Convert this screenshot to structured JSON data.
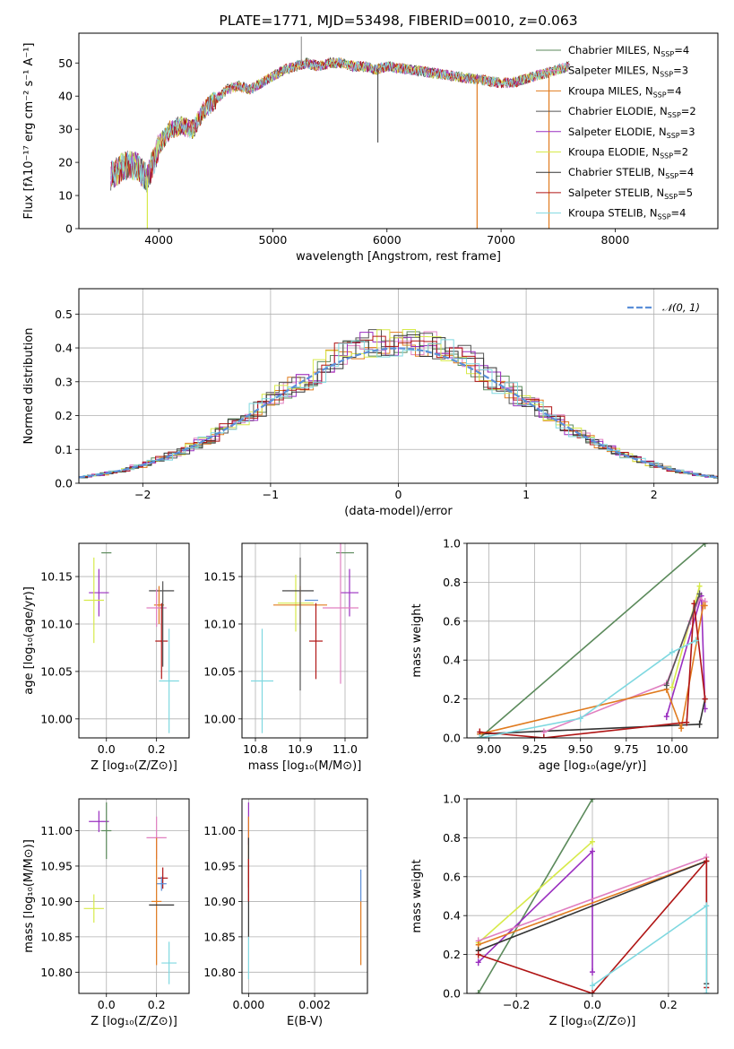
{
  "colors": {
    "Chabrier MILES": "#5b8a5b",
    "Salpeter MILES": "#e07fc0",
    "Kroupa MILES": "#e07b1f",
    "Chabrier ELODIE": "#555555",
    "Salpeter ELODIE": "#9a2fc0",
    "Kroupa ELODIE": "#d7ea4a",
    "Chabrier STELIB": "#333333",
    "Salpeter STELIB": "#b01515",
    "Kroupa STELIB": "#7fd8e0",
    "normal": "#5b8fd8",
    "extra_blue": "#5b8fd8"
  },
  "chart_data": [
    {
      "id": "spectrum",
      "type": "line",
      "title": "PLATE=1771, MJD=53498, FIBERID=0010, z=0.063",
      "xlabel": "wavelength [Angstrom, rest frame]",
      "ylabel": "Flux [fλ10⁻¹⁷ erg cm⁻² s⁻¹ A⁻¹]",
      "xlim": [
        3300,
        8900
      ],
      "ylim": [
        0,
        59
      ],
      "xticks": [
        4000,
        5000,
        6000,
        7000,
        8000
      ],
      "yticks": [
        0,
        10,
        20,
        30,
        40,
        50
      ],
      "grid": false,
      "legend_position": "top-right",
      "legend": [
        {
          "name": "Chabrier MILES",
          "nssp": "4"
        },
        {
          "name": "Salpeter MILES",
          "nssp": "3"
        },
        {
          "name": "Kroupa MILES",
          "nssp": "4"
        },
        {
          "name": "Chabrier ELODIE",
          "nssp": "2"
        },
        {
          "name": "Salpeter ELODIE",
          "nssp": "3"
        },
        {
          "name": "Kroupa ELODIE",
          "nssp": "2"
        },
        {
          "name": "Chabrier STELIB",
          "nssp": "4"
        },
        {
          "name": "Salpeter STELIB",
          "nssp": "5"
        },
        {
          "name": "Kroupa STELIB",
          "nssp": "4"
        }
      ],
      "x": [
        3580,
        3700,
        3800,
        3900,
        3950,
        4000,
        4100,
        4200,
        4300,
        4400,
        4500,
        4600,
        4700,
        4800,
        4900,
        5000,
        5100,
        5200,
        5300,
        5400,
        5500,
        5600,
        5700,
        5800,
        5900,
        6000,
        6200,
        6400,
        6600,
        6800,
        7000,
        7100,
        7200,
        7300,
        7400,
        7500,
        7600
      ],
      "y": [
        16,
        19,
        19,
        15,
        20,
        25,
        30,
        31,
        30,
        36,
        39,
        42,
        43,
        42,
        44,
        46,
        48,
        49,
        50,
        49,
        50,
        50,
        49,
        49,
        48,
        49,
        48,
        47,
        46,
        45,
        44,
        44,
        45,
        46,
        47,
        48,
        49
      ],
      "glitches": [
        {
          "x": 3900,
          "y": 0
        },
        {
          "x": 5250,
          "y": 58
        },
        {
          "x": 5920,
          "y": 26
        },
        {
          "x": 6790,
          "y": 0
        },
        {
          "x": 7420,
          "y": 0
        }
      ]
    },
    {
      "id": "residuals",
      "type": "bar",
      "xlabel": "(data-model)/error",
      "ylabel": "Normed distribution",
      "xlim": [
        -2.5,
        2.5
      ],
      "ylim": [
        0,
        0.575
      ],
      "xticks": [
        -2,
        -1,
        0,
        1,
        2
      ],
      "yticks": [
        0.0,
        0.1,
        0.2,
        0.3,
        0.4,
        0.5
      ],
      "grid": true,
      "legend_position": "top-right",
      "legend_label": "𝒩(0, 1)"
    },
    {
      "id": "age_vs_Z",
      "type": "scatter",
      "xlabel": "Z [log₁₀(Z/Z⊙)]",
      "ylabel": "age  [log₁₀(age/yr)]",
      "xlim": [
        -0.11,
        0.33
      ],
      "ylim": [
        9.98,
        10.185
      ],
      "xticks": [
        0.0,
        0.2
      ],
      "yticks": [
        10.0,
        10.05,
        10.1,
        10.15
      ],
      "grid": true,
      "points": [
        {
          "model": "Chabrier MILES",
          "x": 0.0,
          "y": 10.175,
          "ex": 0.02,
          "ey": 0.0
        },
        {
          "model": "Salpeter ELODIE",
          "x": -0.03,
          "y": 10.133,
          "ex": 0.04,
          "ey": 0.025
        },
        {
          "model": "Kroupa ELODIE",
          "x": -0.05,
          "y": 10.125,
          "ex": 0.04,
          "ey": 0.045
        },
        {
          "model": "Chabrier STELIB",
          "x": 0.22,
          "y": 10.135,
          "ex": 0.05,
          "ey": 0.0
        },
        {
          "model": "Kroupa MILES",
          "x": 0.21,
          "y": 10.12,
          "ex": 0.02,
          "ey": 0.02
        },
        {
          "model": "Salpeter MILES",
          "x": 0.2,
          "y": 10.117,
          "ex": 0.04,
          "ey": 0.02
        },
        {
          "model": "Salpeter STELIB",
          "x": 0.22,
          "y": 10.082,
          "ex": 0.025,
          "ey": 0.04
        },
        {
          "model": "Chabrier ELODIE",
          "x": 0.225,
          "y": 10.1,
          "ex": 0.0,
          "ey": 0.045
        },
        {
          "model": "Kroupa STELIB",
          "x": 0.25,
          "y": 10.04,
          "ex": 0.04,
          "ey": 0.055
        }
      ]
    },
    {
      "id": "age_vs_mass",
      "type": "scatter",
      "xlabel": "mass [log₁₀(M/M⊙)]",
      "ylabel": "",
      "xlim": [
        10.77,
        11.05
      ],
      "ylim": [
        9.98,
        10.185
      ],
      "xticks": [
        10.8,
        10.9,
        11.0
      ],
      "yticks": [
        10.0,
        10.05,
        10.1,
        10.15
      ],
      "grid": true,
      "points": [
        {
          "model": "Chabrier MILES",
          "x": 11.0,
          "y": 10.175,
          "ex": 0.02,
          "ey": 0.0
        },
        {
          "model": "Salpeter ELODIE",
          "x": 11.01,
          "y": 10.133,
          "ex": 0.02,
          "ey": 0.025
        },
        {
          "model": "Kroupa ELODIE",
          "x": 10.89,
          "y": 10.122,
          "ex": 0.04,
          "ey": 0.03
        },
        {
          "model": "Chabrier STELIB",
          "x": 10.895,
          "y": 10.135,
          "ex": 0.035,
          "ey": 0.0
        },
        {
          "model": "Kroupa MILES",
          "x": 10.9,
          "y": 10.12,
          "ex": 0.06,
          "ey": 0.02
        },
        {
          "model": "Salpeter MILES",
          "x": 10.99,
          "y": 10.117,
          "ex": 0.04,
          "ey": 0.08
        },
        {
          "model": "Salpeter STELIB",
          "x": 10.935,
          "y": 10.082,
          "ex": 0.015,
          "ey": 0.04
        },
        {
          "model": "Chabrier ELODIE",
          "x": 10.9,
          "y": 10.1,
          "ex": 0.0,
          "ey": 0.07
        },
        {
          "model": "Kroupa STELIB",
          "x": 10.815,
          "y": 10.04,
          "ex": 0.025,
          "ey": 0.055
        },
        {
          "model": "extra_blue",
          "x": 10.925,
          "y": 10.125,
          "ex": 0.015,
          "ey": 0.0
        }
      ]
    },
    {
      "id": "massweight_vs_age",
      "type": "line",
      "xlabel": "age  [log₁₀(age/yr)]",
      "ylabel": "mass weight",
      "xlim": [
        8.88,
        10.25
      ],
      "ylim": [
        0,
        1.0
      ],
      "xticks": [
        9.0,
        9.25,
        9.5,
        9.75,
        10.0
      ],
      "yticks": [
        0.0,
        0.2,
        0.4,
        0.6,
        0.8,
        1.0
      ],
      "grid": true,
      "series": [
        {
          "model": "Chabrier MILES",
          "x": [
            8.95,
            10.18
          ],
          "y": [
            0.0,
            1.0
          ]
        },
        {
          "model": "Salpeter ELODIE",
          "x": [
            9.97,
            10.16,
            10.18
          ],
          "y": [
            0.11,
            0.73,
            0.15
          ]
        },
        {
          "model": "Kroupa ELODIE",
          "x": [
            10.0,
            10.15
          ],
          "y": [
            0.26,
            0.78
          ]
        },
        {
          "model": "Chabrier STELIB",
          "x": [
            8.95,
            10.15,
            10.18
          ],
          "y": [
            0.02,
            0.07,
            0.2
          ]
        },
        {
          "model": "Salpeter MILES",
          "x": [
            9.3,
            9.97,
            10.1,
            10.15,
            10.18
          ],
          "y": [
            0.03,
            0.28,
            0.6,
            0.72,
            0.7
          ]
        },
        {
          "model": "Kroupa MILES",
          "x": [
            8.95,
            9.97,
            10.05,
            10.17,
            10.18
          ],
          "y": [
            0.02,
            0.25,
            0.05,
            0.68,
            0.68
          ]
        },
        {
          "model": "Salpeter STELIB",
          "x": [
            8.95,
            9.3,
            10.08,
            10.12,
            10.18
          ],
          "y": [
            0.03,
            0.0,
            0.08,
            0.69,
            0.2
          ]
        },
        {
          "model": "Chabrier ELODIE",
          "x": [
            9.97,
            10.15
          ],
          "y": [
            0.27,
            0.74
          ]
        },
        {
          "model": "Kroupa STELIB",
          "x": [
            8.95,
            9.5,
            10.0,
            10.13
          ],
          "y": [
            0.0,
            0.1,
            0.44,
            0.5
          ]
        }
      ]
    },
    {
      "id": "mass_vs_Z",
      "type": "scatter",
      "xlabel": "Z [log₁₀(Z/Z⊙)]",
      "ylabel": "mass [log₁₀(M/M⊙)]",
      "xlim": [
        -0.11,
        0.33
      ],
      "ylim": [
        10.77,
        11.045
      ],
      "xticks": [
        0.0,
        0.2
      ],
      "yticks": [
        10.8,
        10.85,
        10.9,
        10.95,
        11.0
      ],
      "grid": true,
      "points": [
        {
          "model": "Salpeter ELODIE",
          "x": -0.03,
          "y": 11.013,
          "ex": 0.04,
          "ey": 0.015
        },
        {
          "model": "Chabrier MILES",
          "x": 0.0,
          "y": 11.0,
          "ex": 0.02,
          "ey": 0.04
        },
        {
          "model": "Salpeter MILES",
          "x": 0.2,
          "y": 10.99,
          "ex": 0.04,
          "ey": 0.03
        },
        {
          "model": "Salpeter STELIB",
          "x": 0.225,
          "y": 10.933,
          "ex": 0.02,
          "ey": 0.015
        },
        {
          "model": "extra_blue",
          "x": 0.22,
          "y": 10.925,
          "ex": 0.02,
          "ey": 0.01
        },
        {
          "model": "Kroupa MILES",
          "x": 0.2,
          "y": 10.9,
          "ex": 0.02,
          "ey": 0.09
        },
        {
          "model": "Chabrier STELIB",
          "x": 0.22,
          "y": 10.895,
          "ex": 0.05,
          "ey": 0.0
        },
        {
          "model": "Kroupa ELODIE",
          "x": -0.05,
          "y": 10.89,
          "ex": 0.04,
          "ey": 0.02
        },
        {
          "model": "Kroupa STELIB",
          "x": 0.25,
          "y": 10.813,
          "ex": 0.03,
          "ey": 0.03
        }
      ]
    },
    {
      "id": "mass_vs_ebv",
      "type": "scatter",
      "xlabel": "E(B-V)",
      "ylabel": "",
      "xlim": [
        -0.0002,
        0.0036
      ],
      "ylim": [
        10.77,
        11.045
      ],
      "xticks": [
        0.0,
        0.002
      ],
      "yticks": [
        10.8,
        10.85,
        10.9,
        10.95,
        11.0
      ],
      "grid": true,
      "vbars": [
        {
          "model": "Salpeter ELODIE",
          "x": 0.0,
          "y0": 10.98,
          "y1": 11.04
        },
        {
          "model": "Kroupa MILES",
          "x": 0.0,
          "y0": 10.92,
          "y1": 11.02
        },
        {
          "model": "Chabrier STELIB",
          "x": 0.0,
          "y0": 10.85,
          "y1": 10.99
        },
        {
          "model": "Kroupa STELIB",
          "x": 0.0,
          "y0": 10.79,
          "y1": 10.85
        },
        {
          "model": "Salpeter STELIB",
          "x": 0.0,
          "y0": 10.9,
          "y1": 10.96
        },
        {
          "model": "extra_blue",
          "x": 0.0034,
          "y0": 10.9,
          "y1": 10.945
        },
        {
          "model": "Kroupa MILES",
          "x": 0.0034,
          "y0": 10.81,
          "y1": 10.9
        }
      ]
    },
    {
      "id": "massweight_vs_Z",
      "type": "line",
      "xlabel": "Z [log₁₀(Z/Z⊙)]",
      "ylabel": "mass weight",
      "xlim": [
        -0.33,
        0.33
      ],
      "ylim": [
        0,
        1.0
      ],
      "xticks": [
        -0.2,
        0.0,
        0.2
      ],
      "yticks": [
        0.0,
        0.2,
        0.4,
        0.6,
        0.8,
        1.0
      ],
      "grid": true,
      "series": [
        {
          "model": "Chabrier MILES",
          "x": [
            -0.3,
            0.0
          ],
          "y": [
            0.0,
            1.0
          ]
        },
        {
          "model": "Kroupa ELODIE",
          "x": [
            -0.3,
            0.0
          ],
          "y": [
            0.26,
            0.78
          ]
        },
        {
          "model": "Salpeter ELODIE",
          "x": [
            -0.3,
            0.0,
            0.0
          ],
          "y": [
            0.16,
            0.73,
            0.11
          ]
        },
        {
          "model": "Salpeter MILES",
          "x": [
            -0.3,
            0.3
          ],
          "y": [
            0.27,
            0.7
          ]
        },
        {
          "model": "Kroupa MILES",
          "x": [
            -0.3,
            0.3
          ],
          "y": [
            0.25,
            0.68
          ]
        },
        {
          "model": "Chabrier STELIB",
          "x": [
            -0.3,
            0.3,
            0.3
          ],
          "y": [
            0.22,
            0.68,
            0.05
          ]
        },
        {
          "model": "Salpeter STELIB",
          "x": [
            -0.3,
            0.0,
            0.3,
            0.3
          ],
          "y": [
            0.2,
            0.0,
            0.68,
            0.03
          ]
        },
        {
          "model": "Kroupa STELIB",
          "x": [
            0.0,
            0.3,
            0.3
          ],
          "y": [
            0.04,
            0.45,
            0.0
          ]
        }
      ]
    }
  ]
}
